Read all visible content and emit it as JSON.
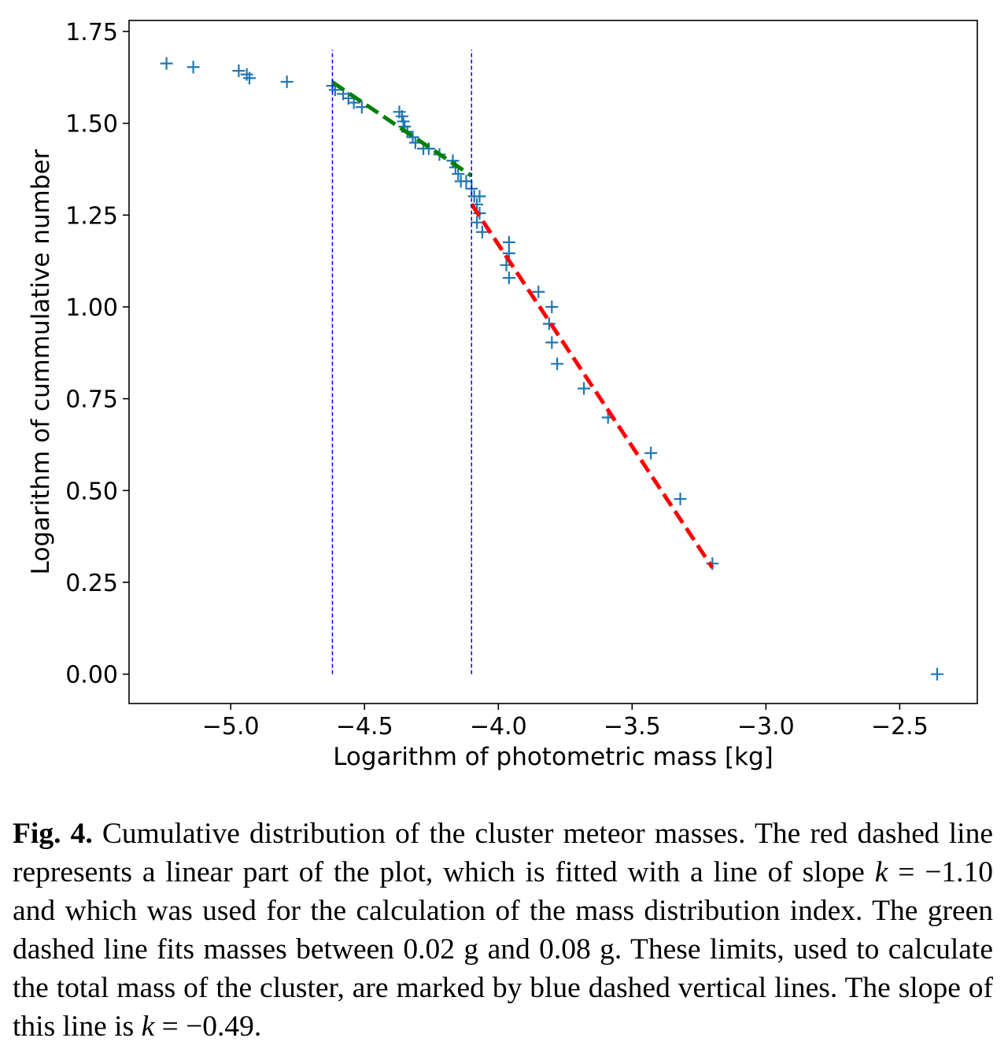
{
  "chart_data": {
    "type": "scatter",
    "xlabel": "Logarithm of photometric mass [kg]",
    "ylabel": "Logarithm of cummulative number",
    "xlim": [
      -5.38,
      -2.21
    ],
    "ylim": [
      -0.08,
      1.78
    ],
    "x_ticks": [
      -5.0,
      -4.5,
      -4.0,
      -3.5,
      -3.0,
      -2.5
    ],
    "x_tick_labels": [
      "−5.0",
      "−4.5",
      "−4.0",
      "−3.5",
      "−3.0",
      "−2.5"
    ],
    "y_ticks": [
      0.0,
      0.25,
      0.5,
      0.75,
      1.0,
      1.25,
      1.5,
      1.75
    ],
    "y_tick_labels": [
      "0.00",
      "0.25",
      "0.50",
      "0.75",
      "1.00",
      "1.25",
      "1.50",
      "1.75"
    ],
    "grid": false,
    "marker_color": "#1f77b4",
    "points": [
      [
        -5.24,
        1.663
      ],
      [
        -5.14,
        1.653
      ],
      [
        -4.97,
        1.643
      ],
      [
        -4.94,
        1.633
      ],
      [
        -4.93,
        1.623
      ],
      [
        -4.79,
        1.613
      ],
      [
        -4.62,
        1.602
      ],
      [
        -4.61,
        1.591
      ],
      [
        -4.58,
        1.58
      ],
      [
        -4.56,
        1.568
      ],
      [
        -4.54,
        1.556
      ],
      [
        -4.51,
        1.544
      ],
      [
        -4.37,
        1.531
      ],
      [
        -4.36,
        1.519
      ],
      [
        -4.355,
        1.505
      ],
      [
        -4.35,
        1.491
      ],
      [
        -4.34,
        1.477
      ],
      [
        -4.32,
        1.462
      ],
      [
        -4.31,
        1.447
      ],
      [
        -4.28,
        1.431
      ],
      [
        -4.26,
        1.431
      ],
      [
        -4.22,
        1.415
      ],
      [
        -4.17,
        1.398
      ],
      [
        -4.16,
        1.38
      ],
      [
        -4.15,
        1.362
      ],
      [
        -4.14,
        1.342
      ],
      [
        -4.12,
        1.342
      ],
      [
        -4.1,
        1.322
      ],
      [
        -4.09,
        1.301
      ],
      [
        -4.07,
        1.301
      ],
      [
        -4.08,
        1.279
      ],
      [
        -4.07,
        1.255
      ],
      [
        -4.08,
        1.23
      ],
      [
        -4.06,
        1.204
      ],
      [
        -3.96,
        1.176
      ],
      [
        -3.96,
        1.146
      ],
      [
        -3.97,
        1.114
      ],
      [
        -3.96,
        1.079
      ],
      [
        -3.85,
        1.041
      ],
      [
        -3.8,
        1.0
      ],
      [
        -3.81,
        0.954
      ],
      [
        -3.8,
        0.903
      ],
      [
        -3.78,
        0.845
      ],
      [
        -3.68,
        0.778
      ],
      [
        -3.59,
        0.699
      ],
      [
        -3.43,
        0.602
      ],
      [
        -3.32,
        0.477
      ],
      [
        -3.2,
        0.301
      ],
      [
        -2.36,
        0.0
      ]
    ],
    "vertical_lines": {
      "color": "#0000ff",
      "x": [
        -4.62,
        -4.1
      ],
      "y_range": [
        0.0,
        1.7
      ]
    },
    "fit_lines": [
      {
        "color": "#008000",
        "x": [
          -4.62,
          -4.1
        ],
        "y": [
          1.612,
          1.357
        ]
      },
      {
        "color": "#ff0000",
        "x": [
          -4.1,
          -3.2
        ],
        "y": [
          1.28,
          0.29
        ]
      }
    ]
  },
  "caption": {
    "label": "Fig. 4.",
    "text": "Cumulative distribution of the cluster meteor masses. The red dashed line represents a linear part of the plot, which is fitted with a line of slope",
    "k1_var": "k",
    "k1_value": " = −1.10",
    "text2": "and which was used for the calculation of the mass distribution index. The green dashed line fits masses between 0.02 g and 0.08 g. These limits, used to calculate the total mass of the cluster, are marked by blue dashed vertical lines. The slope of this line is",
    "k2_var": "k",
    "k2_value": " = −0.49."
  }
}
